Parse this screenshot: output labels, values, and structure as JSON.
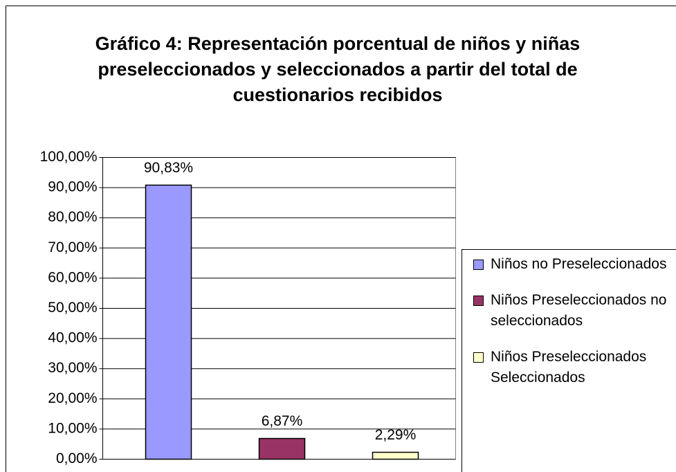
{
  "chart_data": {
    "type": "bar",
    "title": "Gráfico 4: Representación porcentual de niños y niñas preseleccionados y seleccionados a partir del total de cuestionarios recibidos",
    "series": [
      {
        "name": "Niños no Preseleccionados",
        "color": "#9999ff",
        "values": [
          90.83
        ],
        "value_labels": [
          "90,83%"
        ]
      },
      {
        "name": "Niños Preseleccionados no seleccionados",
        "color": "#993366",
        "values": [
          6.87
        ],
        "value_labels": [
          "6,87%"
        ]
      },
      {
        "name": "Niños Preseleccionados Seleccionados",
        "color": "#ffffcc",
        "values": [
          2.29
        ],
        "value_labels": [
          "2,29%"
        ]
      }
    ],
    "ylim": [
      0,
      100
    ],
    "yticks": [
      {
        "value": 0,
        "label": "0,00%"
      },
      {
        "value": 10,
        "label": "10,00%"
      },
      {
        "value": 20,
        "label": "20,00%"
      },
      {
        "value": 30,
        "label": "30,00%"
      },
      {
        "value": 40,
        "label": "40,00%"
      },
      {
        "value": 50,
        "label": "50,00%"
      },
      {
        "value": 60,
        "label": "60,00%"
      },
      {
        "value": 70,
        "label": "70,00%"
      },
      {
        "value": 80,
        "label": "80,00%"
      },
      {
        "value": 90,
        "label": "90,00%"
      },
      {
        "value": 100,
        "label": "100,00%"
      }
    ],
    "grid": true,
    "legend": "right"
  }
}
